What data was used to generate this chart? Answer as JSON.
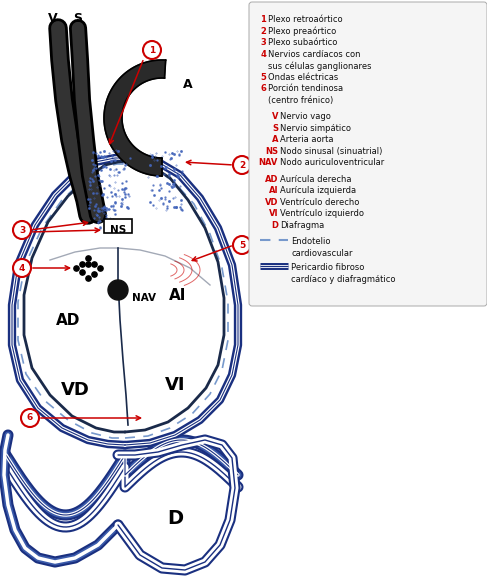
{
  "bg_color": "#ffffff",
  "red_color": "#cc0000",
  "navy": "#1a2a4a",
  "legend_items_numbered": [
    [
      "1",
      "Plexo retroaórtico",
      false
    ],
    [
      "2",
      "Plexo preaórtico",
      false
    ],
    [
      "3",
      "Plexo subaórtico",
      false
    ],
    [
      "4",
      "Nervios cardíacos con",
      true
    ],
    [
      "",
      "sus células ganglionares",
      false
    ],
    [
      "5",
      "Ondas eléctricas",
      false
    ],
    [
      "6",
      "Porción tendinosa",
      true
    ],
    [
      "",
      "(centro frénico)",
      false
    ]
  ],
  "legend_items_letter": [
    [
      "V",
      "Nervio vago"
    ],
    [
      "S",
      "Nervio simpático"
    ],
    [
      "A",
      "Arteria aorta"
    ],
    [
      "NS",
      "Nodo sinusal (sinuatrial)"
    ],
    [
      "NAV",
      "Nodo auriculoventricular"
    ]
  ],
  "legend_items_region": [
    [
      "AD",
      "Aurícula derecha"
    ],
    [
      "AI",
      "Aurícula izquierda"
    ],
    [
      "VD",
      "Ventrículo derecho"
    ],
    [
      "VI",
      "Ventrículo izquierdo"
    ],
    [
      "D",
      "Diafragma"
    ]
  ]
}
